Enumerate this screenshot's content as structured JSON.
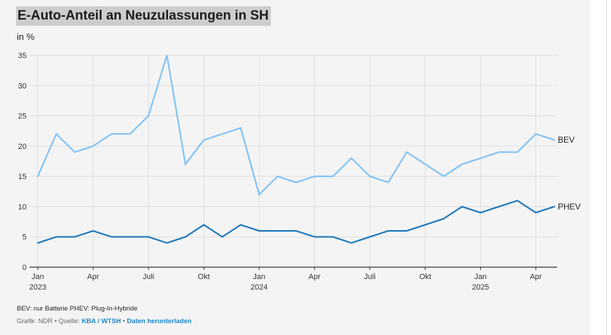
{
  "title": "E-Auto-Anteil an Neuzulassungen in SH",
  "unit_label": "in %",
  "footnote": "BEV: nur Batterie PHEV: Plug-In-Hybride",
  "source": {
    "prefix": "Grafik: NDR",
    "sep1": " • Quelle: ",
    "source_link": "KBA / WTSH",
    "sep2": " • ",
    "download_link": "Daten herunterladen"
  },
  "colors": {
    "bev": "#82c2f5",
    "phev": "#1e78bb",
    "grid": "#dedede",
    "axis": "#333333"
  },
  "chart_data": {
    "type": "line",
    "title": "E-Auto-Anteil an Neuzulassungen in SH",
    "ylabel": "in %",
    "ylim": [
      0,
      35
    ],
    "yticks": [
      0,
      5,
      10,
      15,
      20,
      25,
      30,
      35
    ],
    "x": [
      "2023-01",
      "2023-02",
      "2023-03",
      "2023-04",
      "2023-05",
      "2023-06",
      "2023-07",
      "2023-08",
      "2023-09",
      "2023-10",
      "2023-11",
      "2023-12",
      "2024-01",
      "2024-02",
      "2024-03",
      "2024-04",
      "2024-05",
      "2024-06",
      "2024-07",
      "2024-08",
      "2024-09",
      "2024-10",
      "2024-11",
      "2024-12",
      "2025-01",
      "2025-02",
      "2025-03",
      "2025-04",
      "2025-05"
    ],
    "xticks": [
      {
        "index": 0,
        "label": "Jan",
        "year": "2023"
      },
      {
        "index": 3,
        "label": "Apr",
        "year": ""
      },
      {
        "index": 6,
        "label": "Juli",
        "year": ""
      },
      {
        "index": 9,
        "label": "Okt",
        "year": ""
      },
      {
        "index": 12,
        "label": "Jan",
        "year": "2024"
      },
      {
        "index": 15,
        "label": "Apr",
        "year": ""
      },
      {
        "index": 18,
        "label": "Juli",
        "year": ""
      },
      {
        "index": 21,
        "label": "Okt",
        "year": ""
      },
      {
        "index": 24,
        "label": "Jan",
        "year": "2025"
      },
      {
        "index": 27,
        "label": "Apr",
        "year": ""
      }
    ],
    "grid": true,
    "series": [
      {
        "name": "BEV",
        "color": "#82c2f5",
        "values": [
          15,
          22,
          19,
          20,
          22,
          22,
          25,
          35,
          17,
          21,
          22,
          23,
          12,
          15,
          14,
          15,
          15,
          18,
          15,
          14,
          19,
          17,
          15,
          17,
          18,
          19,
          19,
          22,
          21
        ]
      },
      {
        "name": "PHEV",
        "color": "#1e78bb",
        "values": [
          4,
          5,
          5,
          6,
          5,
          5,
          5,
          4,
          5,
          7,
          5,
          7,
          6,
          6,
          6,
          5,
          5,
          4,
          5,
          6,
          6,
          7,
          8,
          10,
          9,
          10,
          11,
          9,
          10
        ]
      }
    ]
  }
}
